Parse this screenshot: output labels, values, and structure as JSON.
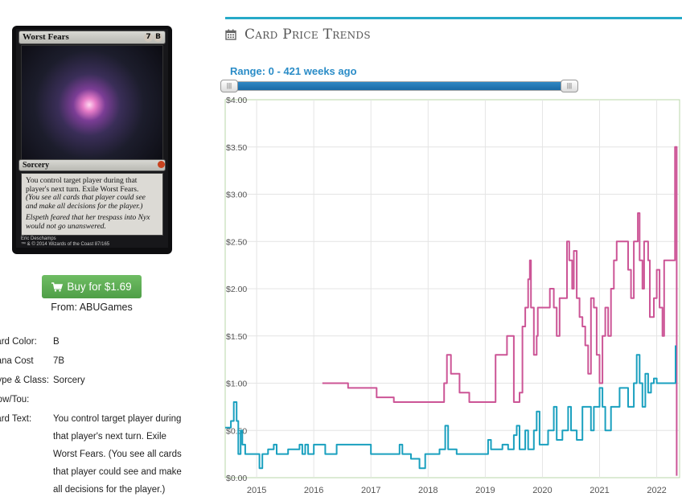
{
  "card": {
    "name": "Worst Fears",
    "mana_symbols": [
      "7",
      "B"
    ],
    "type_line": "Sorcery",
    "rules_text": "You control target player during that player's next turn. Exile Worst Fears.",
    "reminder_text": "(You see all cards that player could see and make all decisions for the player.)",
    "flavor_text": "Elspeth feared that her trespass into Nyx would not go unanswered.",
    "artist": "Eric Deschamps",
    "copyright": "™ & © 2014 Wizards of the Coast 87/165"
  },
  "buy": {
    "label": "Buy for $1.69",
    "vendor": "From: ABUGames"
  },
  "attributes": [
    {
      "label": "Card Color:",
      "value": "B"
    },
    {
      "label": "Mana Cost",
      "value": "7B"
    },
    {
      "label": "Type & Class:",
      "value": "Sorcery"
    },
    {
      "label": "Pow/Tou:",
      "value": ""
    },
    {
      "label": "Card Text:",
      "value": "You control target player during"
    }
  ],
  "card_text_lines": [
    "that player's next turn. Exile",
    "Worst Fears. (You see all cards",
    "that player could see and make",
    "all decisions for the player.)"
  ],
  "section": {
    "title": "Card Price Trends",
    "icon": "calendar-icon"
  },
  "range": {
    "label": "Range: 0 - 421 weeks ago",
    "min_weeks": 0,
    "max_weeks": 421
  },
  "colors": {
    "accent": "#26a9c8",
    "pink": "#cc5596",
    "teal": "#1aa0bf",
    "buy": "#5cb85c",
    "range": "#2a8cc7"
  },
  "chart_data": {
    "type": "line",
    "ylim": [
      0,
      4
    ],
    "xlim": [
      2014.45,
      2022.4
    ],
    "yticks": [
      "$0.00",
      "$0.50",
      "$1.00",
      "$1.50",
      "$2.00",
      "$2.50",
      "$3.00",
      "$3.50",
      "$4.00"
    ],
    "xticks": [
      "2015",
      "2016",
      "2017",
      "2018",
      "2019",
      "2020",
      "2021",
      "2022"
    ],
    "series": [
      {
        "color": "#cc5596",
        "points": [
          [
            2016.15,
            1.0
          ],
          [
            2016.6,
            0.95
          ],
          [
            2017.1,
            0.85
          ],
          [
            2017.4,
            0.8
          ],
          [
            2017.9,
            0.8
          ],
          [
            2018.15,
            0.8
          ],
          [
            2018.28,
            1.0
          ],
          [
            2018.33,
            1.3
          ],
          [
            2018.4,
            1.1
          ],
          [
            2018.55,
            0.9
          ],
          [
            2018.72,
            0.8
          ],
          [
            2019.15,
            0.8
          ],
          [
            2019.18,
            1.3
          ],
          [
            2019.35,
            1.3
          ],
          [
            2019.38,
            1.5
          ],
          [
            2019.48,
            1.5
          ],
          [
            2019.5,
            0.8
          ],
          [
            2019.6,
            0.9
          ],
          [
            2019.65,
            1.6
          ],
          [
            2019.7,
            1.8
          ],
          [
            2019.75,
            2.1
          ],
          [
            2019.78,
            2.3
          ],
          [
            2019.8,
            1.8
          ],
          [
            2019.85,
            1.3
          ],
          [
            2019.9,
            1.5
          ],
          [
            2019.92,
            1.8
          ],
          [
            2020.0,
            1.8
          ],
          [
            2020.1,
            1.8
          ],
          [
            2020.13,
            2.0
          ],
          [
            2020.2,
            1.8
          ],
          [
            2020.25,
            1.5
          ],
          [
            2020.3,
            1.9
          ],
          [
            2020.4,
            1.9
          ],
          [
            2020.43,
            2.5
          ],
          [
            2020.47,
            2.3
          ],
          [
            2020.52,
            2.0
          ],
          [
            2020.55,
            2.4
          ],
          [
            2020.6,
            1.9
          ],
          [
            2020.65,
            1.7
          ],
          [
            2020.7,
            1.6
          ],
          [
            2020.75,
            1.4
          ],
          [
            2020.8,
            1.1
          ],
          [
            2020.85,
            1.9
          ],
          [
            2020.9,
            1.8
          ],
          [
            2020.95,
            1.3
          ],
          [
            2021.0,
            1.0
          ],
          [
            2021.05,
            1.5
          ],
          [
            2021.1,
            1.8
          ],
          [
            2021.15,
            1.5
          ],
          [
            2021.2,
            2.0
          ],
          [
            2021.25,
            2.3
          ],
          [
            2021.3,
            2.5
          ],
          [
            2021.45,
            2.5
          ],
          [
            2021.5,
            2.2
          ],
          [
            2021.55,
            1.9
          ],
          [
            2021.6,
            2.5
          ],
          [
            2021.67,
            2.8
          ],
          [
            2021.7,
            2.3
          ],
          [
            2021.75,
            2.0
          ],
          [
            2021.78,
            2.5
          ],
          [
            2021.85,
            2.3
          ],
          [
            2021.88,
            1.7
          ],
          [
            2021.95,
            1.9
          ],
          [
            2022.0,
            2.2
          ],
          [
            2022.05,
            1.8
          ],
          [
            2022.1,
            1.5
          ],
          [
            2022.13,
            2.3
          ],
          [
            2022.25,
            2.3
          ],
          [
            2022.3,
            2.3
          ],
          [
            2022.32,
            3.5
          ],
          [
            2022.35,
            0.02
          ]
        ]
      },
      {
        "color": "#1aa0bf",
        "points": [
          [
            2014.45,
            0.53
          ],
          [
            2014.55,
            0.6
          ],
          [
            2014.6,
            0.8
          ],
          [
            2014.65,
            0.6
          ],
          [
            2014.68,
            0.25
          ],
          [
            2014.72,
            0.5
          ],
          [
            2014.75,
            0.35
          ],
          [
            2014.8,
            0.25
          ],
          [
            2015.0,
            0.25
          ],
          [
            2015.05,
            0.1
          ],
          [
            2015.1,
            0.25
          ],
          [
            2015.2,
            0.3
          ],
          [
            2015.3,
            0.35
          ],
          [
            2015.35,
            0.25
          ],
          [
            2015.55,
            0.3
          ],
          [
            2015.75,
            0.35
          ],
          [
            2015.8,
            0.25
          ],
          [
            2015.85,
            0.35
          ],
          [
            2015.9,
            0.25
          ],
          [
            2016.0,
            0.35
          ],
          [
            2016.1,
            0.35
          ],
          [
            2016.2,
            0.25
          ],
          [
            2016.4,
            0.35
          ],
          [
            2016.7,
            0.35
          ],
          [
            2016.95,
            0.35
          ],
          [
            2017.0,
            0.25
          ],
          [
            2017.45,
            0.25
          ],
          [
            2017.5,
            0.35
          ],
          [
            2017.55,
            0.25
          ],
          [
            2017.7,
            0.2
          ],
          [
            2017.85,
            0.1
          ],
          [
            2017.95,
            0.25
          ],
          [
            2018.1,
            0.25
          ],
          [
            2018.2,
            0.3
          ],
          [
            2018.3,
            0.55
          ],
          [
            2018.35,
            0.3
          ],
          [
            2018.5,
            0.25
          ],
          [
            2019.0,
            0.25
          ],
          [
            2019.05,
            0.4
          ],
          [
            2019.1,
            0.3
          ],
          [
            2019.3,
            0.35
          ],
          [
            2019.4,
            0.3
          ],
          [
            2019.5,
            0.45
          ],
          [
            2019.55,
            0.55
          ],
          [
            2019.6,
            0.3
          ],
          [
            2019.7,
            0.5
          ],
          [
            2019.75,
            0.3
          ],
          [
            2019.85,
            0.5
          ],
          [
            2019.9,
            0.7
          ],
          [
            2019.95,
            0.35
          ],
          [
            2020.1,
            0.5
          ],
          [
            2020.2,
            0.75
          ],
          [
            2020.25,
            0.4
          ],
          [
            2020.35,
            0.5
          ],
          [
            2020.45,
            0.75
          ],
          [
            2020.5,
            0.5
          ],
          [
            2020.6,
            0.4
          ],
          [
            2020.7,
            0.75
          ],
          [
            2020.8,
            0.75
          ],
          [
            2020.85,
            0.5
          ],
          [
            2020.9,
            0.75
          ],
          [
            2021.0,
            0.95
          ],
          [
            2021.05,
            0.75
          ],
          [
            2021.1,
            0.5
          ],
          [
            2021.2,
            0.75
          ],
          [
            2021.3,
            0.75
          ],
          [
            2021.35,
            0.95
          ],
          [
            2021.45,
            0.95
          ],
          [
            2021.5,
            0.75
          ],
          [
            2021.6,
            1.0
          ],
          [
            2021.65,
            1.3
          ],
          [
            2021.7,
            1.0
          ],
          [
            2021.75,
            0.75
          ],
          [
            2021.8,
            1.1
          ],
          [
            2021.85,
            0.9
          ],
          [
            2021.9,
            1.0
          ],
          [
            2021.95,
            1.05
          ],
          [
            2022.0,
            1.0
          ],
          [
            2022.1,
            1.0
          ],
          [
            2022.15,
            1.0
          ],
          [
            2022.2,
            1.0
          ],
          [
            2022.3,
            1.0
          ],
          [
            2022.33,
            1.4
          ]
        ]
      }
    ]
  }
}
